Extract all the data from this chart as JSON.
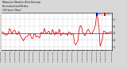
{
  "background_color": "#d8d8d8",
  "plot_bg_color": "#ffffff",
  "line_color": "#dd0000",
  "median_color": "#0000cc",
  "ylim": [
    -1.2,
    1.5
  ],
  "num_points": 96,
  "y_major_ticks": [
    -1.0,
    -0.5,
    0.0,
    0.5,
    1.0
  ],
  "spike_idx": 82,
  "title_text": "Milwaukee Weather Wind Direction\nNormalized and Median\n(24 Hours) (New)"
}
